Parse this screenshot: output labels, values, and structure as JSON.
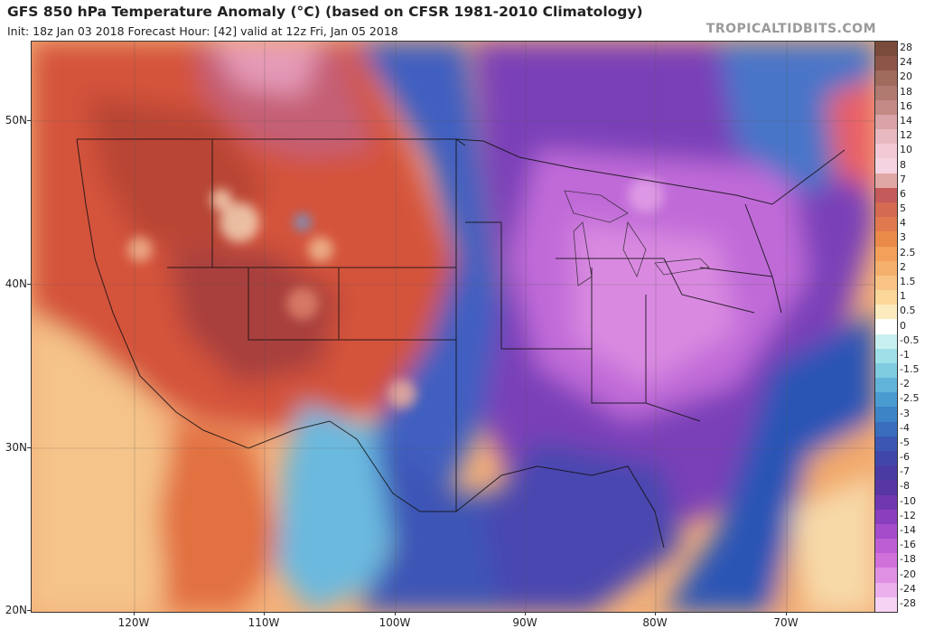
{
  "header": {
    "title": "GFS 850 hPa Temperature Anomaly (°C) (based on CFSR 1981-2010 Climatology)",
    "subtitle": "Init: 18z Jan 03 2018   Forecast Hour: [42]   valid at 12z Fri, Jan 05 2018",
    "brand": "TROPICALTIDBITS.COM"
  },
  "map": {
    "lat_labels": [
      "50N",
      "40N",
      "30N",
      "20N"
    ],
    "lon_labels": [
      "120W",
      "110W",
      "100W",
      "90W",
      "80W",
      "70W"
    ]
  },
  "colorbar": {
    "labels": [
      "28",
      "24",
      "20",
      "18",
      "16",
      "14",
      "12",
      "10",
      "8",
      "7",
      "6",
      "5",
      "4",
      "3",
      "2.5",
      "2",
      "1.5",
      "1",
      "0.5",
      "0",
      "-0.5",
      "-1",
      "-1.5",
      "-2",
      "-2.5",
      "-3",
      "-4",
      "-5",
      "-6",
      "-7",
      "-8",
      "-10",
      "-12",
      "-14",
      "-16",
      "-18",
      "-20",
      "-24",
      "-28"
    ],
    "colors": [
      "#7a4a3a",
      "#8c5548",
      "#a06a5c",
      "#b07a70",
      "#c48b86",
      "#d9a3a8",
      "#e8b8c0",
      "#f2c9d4",
      "#f5d3e0",
      "#e0a8a4",
      "#c45a5a",
      "#d46a52",
      "#e07a4e",
      "#ea8a4a",
      "#f2a05a",
      "#f5b06e",
      "#f8c384",
      "#fbd79a",
      "#fcebbf",
      "#ffffff",
      "#c9f0f0",
      "#9fe0e8",
      "#7fcbe0",
      "#62b3d9",
      "#4a9bd0",
      "#3d84c6",
      "#3a6dbd",
      "#3b57b3",
      "#4147aa",
      "#4a3ba3",
      "#5836a3",
      "#7038b0",
      "#8a3fbf",
      "#a54ccb",
      "#bd5ed4",
      "#d070d9",
      "#e090e2",
      "#ecb0ec",
      "#f6d3f4"
    ]
  }
}
